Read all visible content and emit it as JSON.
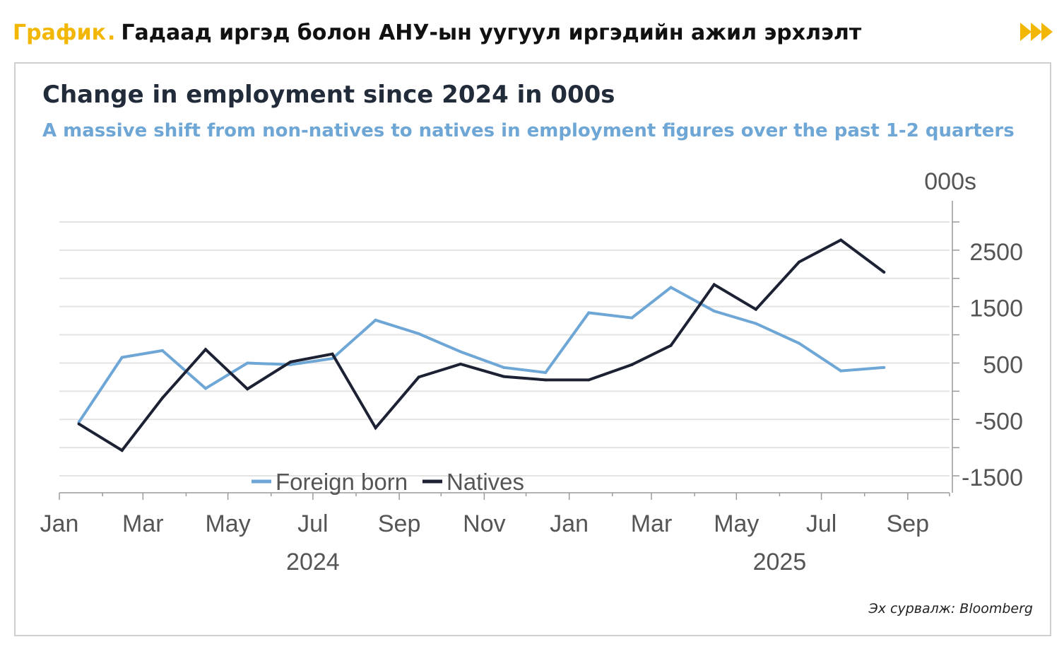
{
  "header": {
    "tag": "График",
    "dot": ".",
    "title": "Гадаад иргэд болон АНУ-ын уугуул иргэдийн ажил эрхлэлт",
    "arrow_icon": "fast-forward-icon",
    "accent_color": "#f2b705"
  },
  "source": "Эх сурвалж: Bloomberg",
  "chart_data": {
    "type": "line",
    "title": "Change in employment since 2024 in 000s",
    "subtitle": "A massive shift from non-natives to natives in employment figures over the past 1-2 quarters",
    "unit_label": "000s",
    "x": [
      "2024-01-15",
      "2024-02-15",
      "2024-03-15",
      "2024-04-15",
      "2024-05-15",
      "2024-06-15",
      "2024-07-15",
      "2024-08-15",
      "2024-09-15",
      "2024-10-15",
      "2024-11-15",
      "2024-12-15",
      "2025-01-15",
      "2025-02-15",
      "2025-03-15",
      "2025-04-15",
      "2025-05-15",
      "2025-06-15",
      "2025-07-15",
      "2025-08-15"
    ],
    "series": [
      {
        "name": "Foreign born",
        "color": "#6ea6d6",
        "values": [
          -550,
          600,
          720,
          50,
          500,
          470,
          580,
          1260,
          1020,
          700,
          420,
          330,
          1390,
          1300,
          1840,
          1420,
          1200,
          850,
          360,
          420
        ]
      },
      {
        "name": "Natives",
        "color": "#1c2133",
        "values": [
          -580,
          -1050,
          -120,
          740,
          40,
          520,
          660,
          -650,
          250,
          480,
          260,
          200,
          200,
          470,
          810,
          1890,
          1450,
          2290,
          2680,
          2110
        ]
      }
    ],
    "ylim": [
      -1800,
      3300
    ],
    "yticks": [
      2500,
      1500,
      500,
      -500,
      -1500
    ],
    "y_tick_labels": [
      "2500",
      "1500",
      "500",
      "-500",
      "-1500"
    ],
    "xticks": [
      "2024-01",
      "2024-03",
      "2024-05",
      "2024-07",
      "2024-09",
      "2024-11",
      "2025-01",
      "2025-03",
      "2025-05",
      "2025-07",
      "2025-09"
    ],
    "x_tick_labels": [
      "Jan",
      "Mar",
      "May",
      "Jul",
      "Sep",
      "Nov",
      "Jan",
      "Mar",
      "May",
      "Jul",
      "Sep"
    ],
    "year_labels": [
      {
        "label": "2024",
        "at": "2024-07"
      },
      {
        "label": "2025",
        "at": "2025-06"
      }
    ],
    "grid": true,
    "y_axis_side": "right",
    "legend_position": "bottom-left"
  }
}
